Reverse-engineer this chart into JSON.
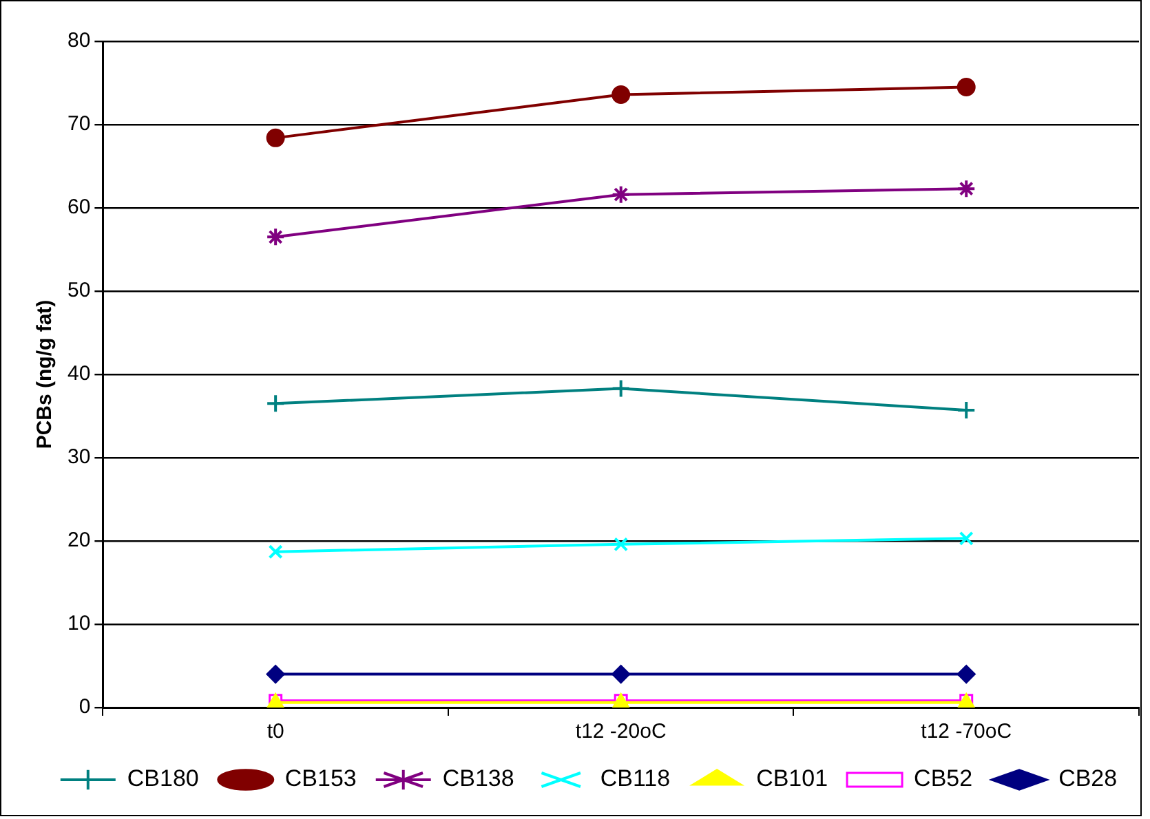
{
  "chart_data": {
    "type": "line",
    "ylabel": "PCBs (ng/g fat)",
    "categories": [
      "t0",
      "t12 -20oC",
      "t12 -70oC"
    ],
    "ylim": [
      0,
      80
    ],
    "yticks": [
      0,
      10,
      20,
      30,
      40,
      50,
      60,
      70,
      80
    ],
    "grid": "y",
    "legend": "bottom",
    "series": [
      {
        "name": "CB28",
        "color": "#000080",
        "marker": "diamond",
        "values": [
          4,
          4,
          4
        ]
      },
      {
        "name": "CB52",
        "color": "#ff00ff",
        "marker": "square",
        "values": [
          0.8,
          0.8,
          0.8
        ]
      },
      {
        "name": "CB101",
        "color": "#ffff00",
        "marker": "triangle",
        "values": [
          0.6,
          0.6,
          0.6
        ]
      },
      {
        "name": "CB118",
        "color": "#00ffff",
        "marker": "cross",
        "values": [
          18.7,
          19.6,
          20.3
        ]
      },
      {
        "name": "CB138",
        "color": "#800080",
        "marker": "cross",
        "values": [
          56.5,
          61.6,
          62.3
        ]
      },
      {
        "name": "CB153",
        "color": "#800000",
        "marker": "circle",
        "values": [
          68.4,
          73.6,
          74.5
        ]
      },
      {
        "name": "CB180",
        "color": "#008080",
        "marker": "cross",
        "values": [
          36.5,
          38.3,
          35.7
        ]
      }
    ]
  }
}
